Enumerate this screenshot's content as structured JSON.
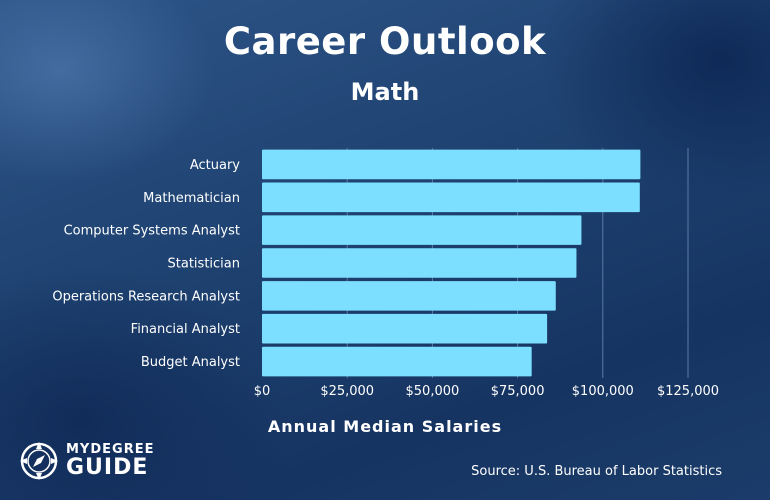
{
  "header": {
    "title": "Career Outlook",
    "subtitle": "Math"
  },
  "chart_data": {
    "type": "bar",
    "orientation": "horizontal",
    "title": "Career Outlook",
    "subtitle": "Math",
    "categories": [
      "Actuary",
      "Mathematician",
      "Computer Systems Analyst",
      "Statistician",
      "Operations Research Analyst",
      "Financial Analyst",
      "Budget Analyst"
    ],
    "values": [
      111030,
      110860,
      93730,
      92270,
      86200,
      83660,
      79130
    ],
    "xlabel": "Annual Median Salaries",
    "ylabel": "",
    "xlim": [
      0,
      125000
    ],
    "ticks": [
      0,
      25000,
      50000,
      75000,
      100000,
      125000
    ],
    "tick_labels": [
      "$0",
      "$25,000",
      "$50,000",
      "$75,000",
      "$100,000",
      "$125,000"
    ],
    "grid": true,
    "bar_color": "#7ddfff",
    "grid_color": "#5a7aa6"
  },
  "footer": {
    "logo_top": "MYDEGREE",
    "logo_bottom": "GUIDE",
    "source": "Source: U.S. Bureau of Labor Statistics"
  }
}
